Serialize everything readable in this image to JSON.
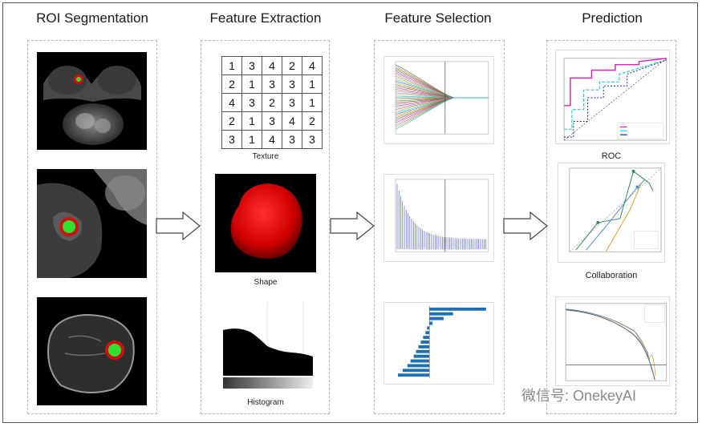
{
  "columns": [
    {
      "title": "ROI Segmentation"
    },
    {
      "title": "Feature Extraction"
    },
    {
      "title": "Feature Selection"
    },
    {
      "title": "Prediction"
    }
  ],
  "texture": {
    "grid": [
      [
        1,
        3,
        4,
        2,
        4
      ],
      [
        2,
        1,
        3,
        3,
        1
      ],
      [
        4,
        3,
        2,
        3,
        1
      ],
      [
        2,
        1,
        3,
        4,
        2
      ],
      [
        3,
        1,
        4,
        3,
        3
      ]
    ],
    "caption": "Texture"
  },
  "shape": {
    "caption": "Shape"
  },
  "histogram": {
    "caption": "Histogram"
  },
  "prediction": {
    "roc_caption": "ROC",
    "collab_caption": "Collaboration"
  },
  "watermark": "微信号: OnekeyAI",
  "colors": {
    "roi_red": "#d01010",
    "roi_green": "#30e030",
    "roc_magenta": "#e020c0",
    "roc_cyan": "#20d0e0",
    "lasso_blue": "#5060e0",
    "bar_blue": "#1f6fb4"
  }
}
